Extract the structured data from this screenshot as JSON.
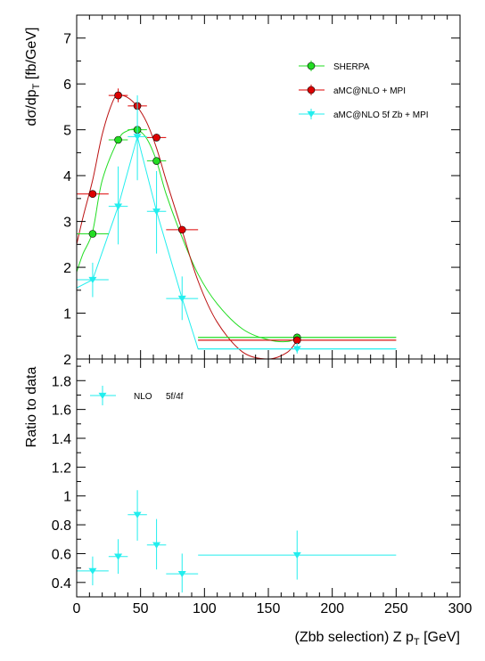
{
  "colors": {
    "sherpa": "#22dd22",
    "amcnlo": "#dd0000",
    "amcnlo_curve": "#bb1111",
    "amcnlo5f": "#22eeee",
    "ratio": "#22eeee",
    "axis": "#000000"
  },
  "chart_data": [
    {
      "type": "scatter",
      "panel": "top",
      "ylabel_main": "dσ/dp",
      "ylabel_sub": "T",
      "ylabel_unit": " [fb/GeV]",
      "xlim": [
        0,
        300
      ],
      "ylim": [
        0,
        7.5
      ],
      "yticks": [
        "1",
        "2",
        "3",
        "4",
        "5",
        "6",
        "7"
      ],
      "legend_position": "top-right",
      "series": [
        {
          "name": "SHERPA",
          "marker": "circle",
          "points": [
            {
              "x": 12.5,
              "xlo": 0,
              "xhi": 25,
              "y": 2.73,
              "ylo": 2.73,
              "yhi": 2.73
            },
            {
              "x": 32.5,
              "xlo": 25,
              "xhi": 40,
              "y": 4.78,
              "ylo": 4.78,
              "yhi": 4.78
            },
            {
              "x": 47.5,
              "xlo": 40,
              "xhi": 55,
              "y": 5.0,
              "ylo": 4.95,
              "yhi": 5.05
            },
            {
              "x": 62.5,
              "xlo": 55,
              "xhi": 70,
              "y": 4.32,
              "ylo": 4.32,
              "yhi": 4.32
            },
            {
              "x": 172.5,
              "xlo": 95,
              "xhi": 250,
              "y": 0.47,
              "ylo": 0.45,
              "yhi": 0.49
            }
          ]
        },
        {
          "name": "aMC@NLO + MPI",
          "marker": "circle",
          "points": [
            {
              "x": 12.5,
              "xlo": 0,
              "xhi": 25,
              "y": 3.6,
              "ylo": 3.6,
              "yhi": 3.6
            },
            {
              "x": 32.5,
              "xlo": 25,
              "xhi": 40,
              "y": 5.75,
              "ylo": 5.6,
              "yhi": 5.9
            },
            {
              "x": 47.5,
              "xlo": 40,
              "xhi": 55,
              "y": 5.52,
              "ylo": 5.45,
              "yhi": 5.6
            },
            {
              "x": 62.5,
              "xlo": 55,
              "xhi": 70,
              "y": 4.83,
              "ylo": 4.75,
              "yhi": 4.9
            },
            {
              "x": 82.5,
              "xlo": 70,
              "xhi": 95,
              "y": 2.82,
              "ylo": 2.78,
              "yhi": 2.86
            },
            {
              "x": 172.5,
              "xlo": 95,
              "xhi": 250,
              "y": 0.41,
              "ylo": 0.38,
              "yhi": 0.44
            }
          ]
        },
        {
          "name": "aMC@NLO 5f Zb + MPI",
          "marker": "triangle-down",
          "points": [
            {
              "x": 12.5,
              "xlo": 0,
              "xhi": 25,
              "y": 1.73,
              "ylo": 1.35,
              "yhi": 2.1
            },
            {
              "x": 32.5,
              "xlo": 25,
              "xhi": 40,
              "y": 3.33,
              "ylo": 2.5,
              "yhi": 4.2
            },
            {
              "x": 47.5,
              "xlo": 40,
              "xhi": 55,
              "y": 4.85,
              "ylo": 3.9,
              "yhi": 5.75
            },
            {
              "x": 62.5,
              "xlo": 55,
              "xhi": 70,
              "y": 3.22,
              "ylo": 2.3,
              "yhi": 4.1
            },
            {
              "x": 82.5,
              "xlo": 70,
              "xhi": 95,
              "y": 1.32,
              "ylo": 0.85,
              "yhi": 1.8
            },
            {
              "x": 172.5,
              "xlo": 95,
              "xhi": 250,
              "y": 0.22,
              "ylo": 0.12,
              "yhi": 0.35
            }
          ]
        }
      ],
      "curves": [
        {
          "series": "SHERPA",
          "x": [
            0,
            5,
            12.5,
            20,
            32.5,
            40,
            47.5,
            55,
            62.5,
            70,
            82.5,
            95,
            110,
            130,
            150,
            165,
            172.5
          ],
          "y": [
            1.9,
            2.3,
            2.78,
            3.9,
            4.78,
            4.98,
            5.0,
            4.8,
            4.32,
            3.6,
            2.65,
            1.85,
            1.2,
            0.65,
            0.42,
            0.38,
            0.47
          ]
        },
        {
          "series": "aMC@NLO + MPI",
          "x": [
            0,
            5,
            12.5,
            20,
            28,
            32.5,
            40,
            47.5,
            55,
            62.5,
            70,
            82.5,
            95,
            110,
            130,
            150,
            165,
            172.5
          ],
          "y": [
            2.5,
            3.1,
            3.9,
            4.9,
            5.6,
            5.75,
            5.7,
            5.5,
            5.15,
            4.6,
            3.9,
            2.8,
            1.7,
            0.8,
            0.15,
            0.0,
            0.15,
            0.41
          ]
        },
        {
          "series": "aMC@NLO 5f Zb + MPI",
          "x": [
            0,
            12.5,
            32.5,
            47.5,
            62.5,
            82.5,
            95,
            172.5,
            250
          ],
          "y": [
            1.55,
            1.73,
            3.33,
            4.85,
            3.22,
            1.32,
            0.22,
            0.22,
            0.22
          ]
        }
      ],
      "flat_lines": [
        {
          "series": "SHERPA",
          "x0": 95,
          "x1": 250,
          "y": 0.47
        },
        {
          "series": "aMC@NLO + MPI",
          "x0": 95,
          "x1": 250,
          "y": 0.41
        }
      ]
    },
    {
      "type": "scatter",
      "panel": "bottom",
      "ylabel": "Ratio to data",
      "xlabel_main": "(Zbb selection) Z p",
      "xlabel_sub": "T",
      "xlabel_unit": " [GeV]",
      "xlim": [
        0,
        300
      ],
      "ylim": [
        0.3,
        1.95
      ],
      "xticks": [
        "0",
        "50",
        "100",
        "150",
        "200",
        "250",
        "300"
      ],
      "yticks": [
        "0.4",
        "0.6",
        "0.8",
        "1",
        "1.2",
        "1.4",
        "1.6",
        "1.8",
        "2"
      ],
      "legend_position": "top-left",
      "legend_label": "NLO",
      "legend_extra": "5f/4f",
      "series": [
        {
          "name": "NLO",
          "marker": "triangle-down",
          "points": [
            {
              "x": 12.5,
              "xlo": 0,
              "xhi": 25,
              "y": 0.48,
              "ylo": 0.38,
              "yhi": 0.58
            },
            {
              "x": 32.5,
              "xlo": 25,
              "xhi": 40,
              "y": 0.58,
              "ylo": 0.46,
              "yhi": 0.7
            },
            {
              "x": 47.5,
              "xlo": 40,
              "xhi": 55,
              "y": 0.87,
              "ylo": 0.69,
              "yhi": 1.04
            },
            {
              "x": 62.5,
              "xlo": 55,
              "xhi": 70,
              "y": 0.66,
              "ylo": 0.49,
              "yhi": 0.84
            },
            {
              "x": 82.5,
              "xlo": 70,
              "xhi": 95,
              "y": 0.46,
              "ylo": 0.33,
              "yhi": 0.6
            },
            {
              "x": 172.5,
              "xlo": 95,
              "xhi": 250,
              "y": 0.59,
              "ylo": 0.42,
              "yhi": 0.76
            }
          ]
        }
      ]
    }
  ]
}
